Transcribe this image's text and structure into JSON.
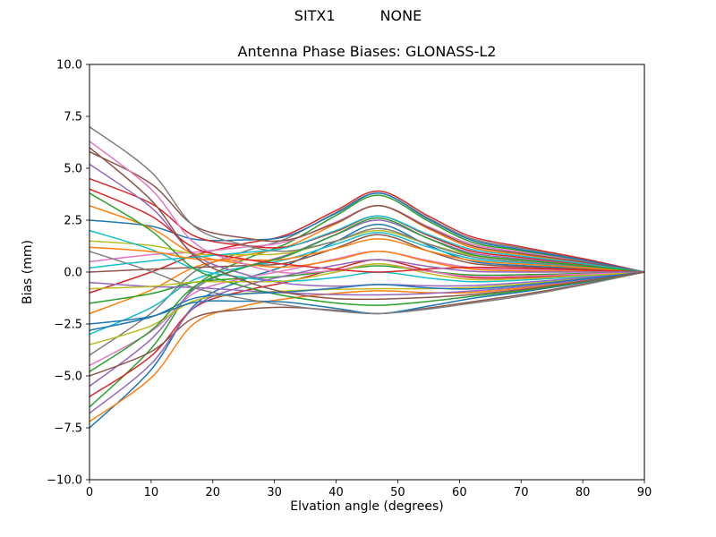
{
  "chart_data": {
    "type": "line",
    "suptitle_parts": [
      "SITX1",
      "NONE"
    ],
    "title": "Antenna Phase Biases: GLONASS-L2",
    "xlabel": "Elvation angle (degrees)",
    "ylabel": "Bias (mm)",
    "xlim": [
      0,
      90
    ],
    "ylim": [
      -10,
      10
    ],
    "xticks": [
      0,
      10,
      20,
      30,
      40,
      50,
      60,
      70,
      80,
      90
    ],
    "xtick_labels": [
      "0",
      "10",
      "20",
      "30",
      "40",
      "50",
      "60",
      "70",
      "80",
      "90"
    ],
    "yticks": [
      -10,
      -7.5,
      -5,
      -2.5,
      0,
      2.5,
      5,
      7.5,
      10
    ],
    "ytick_labels": [
      "−10.0",
      "−7.5",
      "−5.0",
      "−2.5",
      "0.0",
      "2.5",
      "5.0",
      "7.5",
      "10.0"
    ],
    "grid": false,
    "legend": "none",
    "axis_color": "#000000",
    "palette": [
      "#1f77b4",
      "#ff7f0e",
      "#2ca02c",
      "#d62728",
      "#9467bd",
      "#8c564b",
      "#e377c2",
      "#7f7f7f",
      "#bcbd22",
      "#17becf"
    ],
    "x": [
      0,
      10,
      17,
      25,
      32,
      40,
      47,
      55,
      62,
      70,
      80,
      90
    ],
    "series": [
      [
        -7.5,
        -4.7,
        -1.6,
        -0.37,
        0.33,
        1.48,
        2.3,
        1.28,
        0.52,
        0.32,
        0.17,
        0
      ],
      [
        -7.2,
        -5.09,
        -2.47,
        -1.64,
        -1.28,
        -1.02,
        -0.9,
        -0.99,
        -0.98,
        -0.77,
        -0.41,
        0
      ],
      [
        -6.5,
        -3.68,
        -0.73,
        0.58,
        1.37,
        2.73,
        3.7,
        2.45,
        1.45,
        1.03,
        0.55,
        0
      ],
      [
        -6,
        -4.04,
        -1.72,
        -0.91,
        -0.48,
        0.16,
        0.6,
        0.07,
        -0.27,
        -0.26,
        -0.14,
        0
      ],
      [
        -5.5,
        -3.23,
        -0.82,
        0.22,
        0.82,
        1.81,
        2.5,
        1.62,
        0.92,
        0.64,
        0.34,
        0
      ],
      [
        -5,
        -3.83,
        -2.2,
        -1.8,
        -1.7,
        -1.84,
        -2,
        -1.73,
        -1.43,
        -1.09,
        -0.58,
        0
      ],
      [
        -4.5,
        -2.86,
        -1.01,
        -0.3,
        0.09,
        0.64,
        1,
        0.55,
        0.21,
        0.13,
        0.07,
        0
      ],
      [
        -4,
        -1.98,
        0.01,
        0.98,
        1.62,
        2.87,
        3.8,
        2.59,
        1.61,
        1.16,
        0.62,
        0
      ],
      [
        -3.5,
        -2.58,
        -1.38,
        -1.04,
        -0.91,
        -0.83,
        -0.8,
        -0.8,
        -0.74,
        -0.58,
        -0.31,
        0
      ],
      [
        -3,
        -1.71,
        -0.36,
        0.24,
        0.61,
        1.35,
        1.9,
        1.2,
        0.65,
        0.45,
        0.24,
        0
      ],
      [
        -2.5,
        -2.14,
        -1.46,
        -1.4,
        -1.45,
        -1.75,
        -2,
        -1.64,
        -1.27,
        -0.96,
        -0.51,
        0
      ],
      [
        -2,
        -0.86,
        0.23,
        0.8,
        1.22,
        2.33,
        3.2,
        2.08,
        1.19,
        0.84,
        0.44,
        0
      ],
      [
        -1.5,
        -1.04,
        -0.49,
        -0.3,
        -0.2,
        0.08,
        0.3,
        0.04,
        -0.14,
        -0.13,
        -0.07,
        0
      ],
      [
        -1,
        0,
        0.81,
        1.36,
        1.8,
        2.97,
        3.9,
        2.69,
        1.7,
        1.22,
        0.65,
        0
      ],
      [
        -0.5,
        -0.7,
        -0.74,
        -0.89,
        -1,
        -1.08,
        -1.1,
        -1.03,
        -0.91,
        -0.71,
        -0.38,
        0
      ],
      [
        0,
        0.14,
        0.22,
        0.31,
        0.44,
        1.16,
        1.8,
        1.01,
        0.42,
        0.26,
        0.14,
        0
      ],
      [
        0.5,
        0.84,
        0.96,
        1.2,
        1.47,
        2.41,
        3.2,
        2.18,
        1.35,
        0.96,
        0.51,
        0
      ],
      [
        1,
        0.03,
        -0.76,
        -1.28,
        -1.6,
        -1.88,
        -2,
        -1.78,
        -1.5,
        -1.16,
        -0.62,
        0
      ],
      [
        1.5,
        1.28,
        0.88,
        0.84,
        0.92,
        1.49,
        2,
        1.34,
        0.81,
        0.58,
        0.31,
        0
      ],
      [
        2,
        1.09,
        0.16,
        -0.26,
        -0.44,
        -0.26,
        0,
        -0.29,
        -0.46,
        -0.39,
        -0.21,
        0
      ],
      [
        2.5,
        2.21,
        1.58,
        1.55,
        1.73,
        2.83,
        3.8,
        2.54,
        1.54,
        1.09,
        0.58,
        0
      ],
      [
        3.2,
        2.11,
        0.86,
        0.4,
        0.24,
        0.59,
        1,
        0.5,
        0.14,
        0.06,
        0.03,
        0
      ],
      [
        3.8,
        1.99,
        0.17,
        -0.69,
        -1.16,
        -1.49,
        -1.6,
        -1.41,
        -1.17,
        -0.9,
        -0.48,
        0
      ],
      [
        4.5,
        3.3,
        1.74,
        1.29,
        1.22,
        1.96,
        2.7,
        1.75,
        1.01,
        0.71,
        0.38,
        0
      ],
      [
        5.2,
        3.11,
        0.85,
        -0.09,
        -0.55,
        -0.68,
        -0.6,
        -0.66,
        -0.65,
        -0.51,
        -0.27,
        0
      ],
      [
        5.8,
        4.25,
        2.23,
        1.65,
        1.54,
        2.37,
        3.2,
        2.13,
        1.27,
        0.9,
        0.48,
        0
      ],
      [
        6.3,
        3.99,
        1.41,
        0.4,
        -0.04,
        0.09,
        0.4,
        0.03,
        -0.21,
        -0.19,
        -0.1,
        0
      ],
      [
        7,
        4.82,
        2.2,
        1.31,
        1.01,
        1.5,
        2.1,
        1.34,
        0.74,
        0.51,
        0.27,
        0
      ],
      [
        -0.8,
        -0.69,
        -0.48,
        -0.46,
        -0.42,
        0,
        0.4,
        -0.07,
        -0.36,
        -0.32,
        -0.17,
        0
      ],
      [
        0.2,
        0.54,
        0.72,
        0.94,
        1.18,
        2.01,
        2.7,
        1.8,
        1.09,
        0.77,
        0.41,
        0
      ],
      [
        -2.8,
        -2.16,
        -1.26,
        -1.05,
        -0.96,
        -0.77,
        -0.6,
        -0.76,
        -0.81,
        -0.64,
        -0.34,
        0
      ],
      [
        1.2,
        0.99,
        0.64,
        0.58,
        0.64,
        1.14,
        1.6,
        1.01,
        0.56,
        0.39,
        0.21,
        0
      ],
      [
        -4.8,
        -2.81,
        -0.7,
        0.21,
        0.77,
        1.82,
        2.6,
        1.61,
        0.85,
        0.58,
        0.31,
        0
      ],
      [
        4,
        2.7,
        1.17,
        0.63,
        0.37,
        0.13,
        0,
        0.15,
        0.23,
        0.19,
        0.1,
        0
      ],
      [
        -6.8,
        -4.42,
        -1.7,
        -0.68,
        -0.17,
        0.33,
        0.6,
        0.27,
        0.04,
        0,
        0,
        0
      ],
      [
        6,
        3.46,
        0.77,
        -0.4,
        -0.99,
        -1.28,
        -1.3,
        -1.22,
        -1.08,
        -0.84,
        -0.45,
        0
      ]
    ]
  }
}
